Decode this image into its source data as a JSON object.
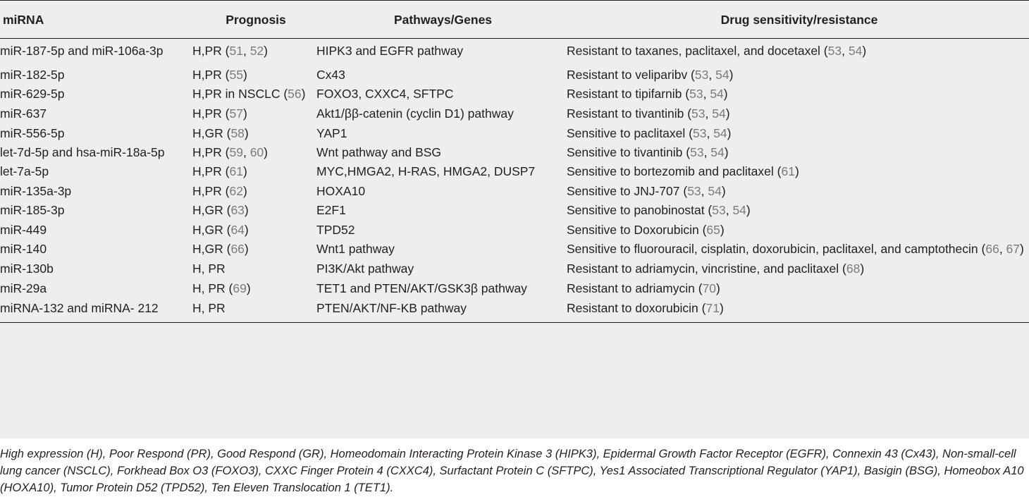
{
  "headers": [
    "miRNA",
    "Prognosis",
    "Pathways/Genes",
    "Drug sensitivity/resistance"
  ],
  "rows": [
    {
      "mirna": "miR-187-5p and miR-106a-3p",
      "prog": "H,PR (",
      "prog_refs": [
        "51",
        "52"
      ],
      "genes": "HIPK3 and EGFR pathway",
      "drug": "Resistant to taxanes, paclitaxel, and docetaxel (",
      "drug_refs": [
        "53",
        "54"
      ]
    },
    {
      "mirna": "miR-182-5p",
      "prog": "H,PR (",
      "prog_refs": [
        "55"
      ],
      "genes": "Cx43",
      "drug": "Resistant to veliparibv (",
      "drug_refs": [
        "53",
        "54"
      ]
    },
    {
      "mirna": "miR-629-5p",
      "prog": "H,PR in NSCLC (",
      "prog_refs": [
        "56"
      ],
      "genes": "FOXO3, CXXC4, SFTPC",
      "drug": "Resistant to tipifarnib (",
      "drug_refs": [
        "53",
        "54"
      ]
    },
    {
      "mirna": "miR-637",
      "prog": "H,PR (",
      "prog_refs": [
        "57"
      ],
      "genes": "Akt1/ββ-catenin (cyclin D1) pathway",
      "drug": "Resistant to tivantinib (",
      "drug_refs": [
        "53",
        "54"
      ]
    },
    {
      "mirna": "miR-556-5p",
      "prog": "H,GR (",
      "prog_refs": [
        "58"
      ],
      "genes": "YAP1",
      "drug": "Sensitive to paclitaxel (",
      "drug_refs": [
        "53",
        "54"
      ]
    },
    {
      "mirna": "let-7d-5p and hsa-miR-18a-5p",
      "prog": "H,PR (",
      "prog_refs": [
        "59",
        "60"
      ],
      "genes": "Wnt pathway and BSG",
      "drug": "Sensitive to tivantinib (",
      "drug_refs": [
        "53",
        "54"
      ]
    },
    {
      "mirna": "let-7a-5p",
      "prog": "H,PR (",
      "prog_refs": [
        "61"
      ],
      "genes": "MYC,HMGA2, H-RAS, HMGA2, DUSP7",
      "drug": "Sensitive to bortezomib and paclitaxel (",
      "drug_refs": [
        "61"
      ]
    },
    {
      "mirna": "miR-135a-3p",
      "prog": "H,PR (",
      "prog_refs": [
        "62"
      ],
      "genes": "HOXA10",
      "drug": "Sensitive to JNJ-707 (",
      "drug_refs": [
        "53",
        "54"
      ]
    },
    {
      "mirna": "miR-185-3p",
      "prog": "H,GR (",
      "prog_refs": [
        "63"
      ],
      "genes": "E2F1",
      "drug": "Sensitive to panobinostat (",
      "drug_refs": [
        "53",
        "54"
      ]
    },
    {
      "mirna": "miR-449",
      "prog": "H,GR (",
      "prog_refs": [
        "64"
      ],
      "genes": "TPD52",
      "drug": "Sensitive to Doxorubicin (",
      "drug_refs": [
        "65"
      ]
    },
    {
      "mirna": "miR-140",
      "prog": "H,GR (",
      "prog_refs": [
        "66"
      ],
      "genes": "Wnt1 pathway",
      "drug": "Sensitive to fluorouracil, cisplatin, doxorubicin, paclitaxel, and camptothecin (",
      "drug_refs": [
        "66",
        "67"
      ]
    },
    {
      "mirna": "miR-130b",
      "prog": "H, PR",
      "prog_refs": [],
      "genes": "PI3K/Akt pathway",
      "drug": "Resistant to adriamycin, vincristine, and paclitaxel (",
      "drug_refs": [
        "68"
      ]
    },
    {
      "mirna": "miR-29a",
      "prog": "H, PR (",
      "prog_refs": [
        "69"
      ],
      "genes": "TET1 and PTEN/AKT/GSK3β pathway",
      "drug": "Resistant to adriamycin (",
      "drug_refs": [
        "70"
      ]
    },
    {
      "mirna": "miRNA-132 and miRNA- 212",
      "prog": "H, PR",
      "prog_refs": [],
      "genes": "PTEN/AKT/NF-KB pathway",
      "drug": "Resistant to doxorubicin (",
      "drug_refs": [
        "71"
      ]
    }
  ],
  "footnote": "High expression (H), Poor Respond (PR), Good Respond (GR), Homeodomain Interacting Protein Kinase 3 (HIPK3), Epidermal Growth Factor Receptor (EGFR), Connexin 43 (Cx43), Non-small-cell lung cancer (NSCLC), Forkhead Box O3 (FOXO3), CXXC Finger Protein 4 (CXXC4), Surfactant Protein C (SFTPC), Yes1 Associated Transcriptional Regulator (YAP1), Basigin (BSG), Homeobox A10 (HOXA10), Tumor Protein D52 (TPD52), Ten Eleven Translocation 1 (TET1).",
  "colors": {
    "table_background": "#edeeef",
    "reference_link": "#7a7b7d",
    "text": "#231f20"
  }
}
